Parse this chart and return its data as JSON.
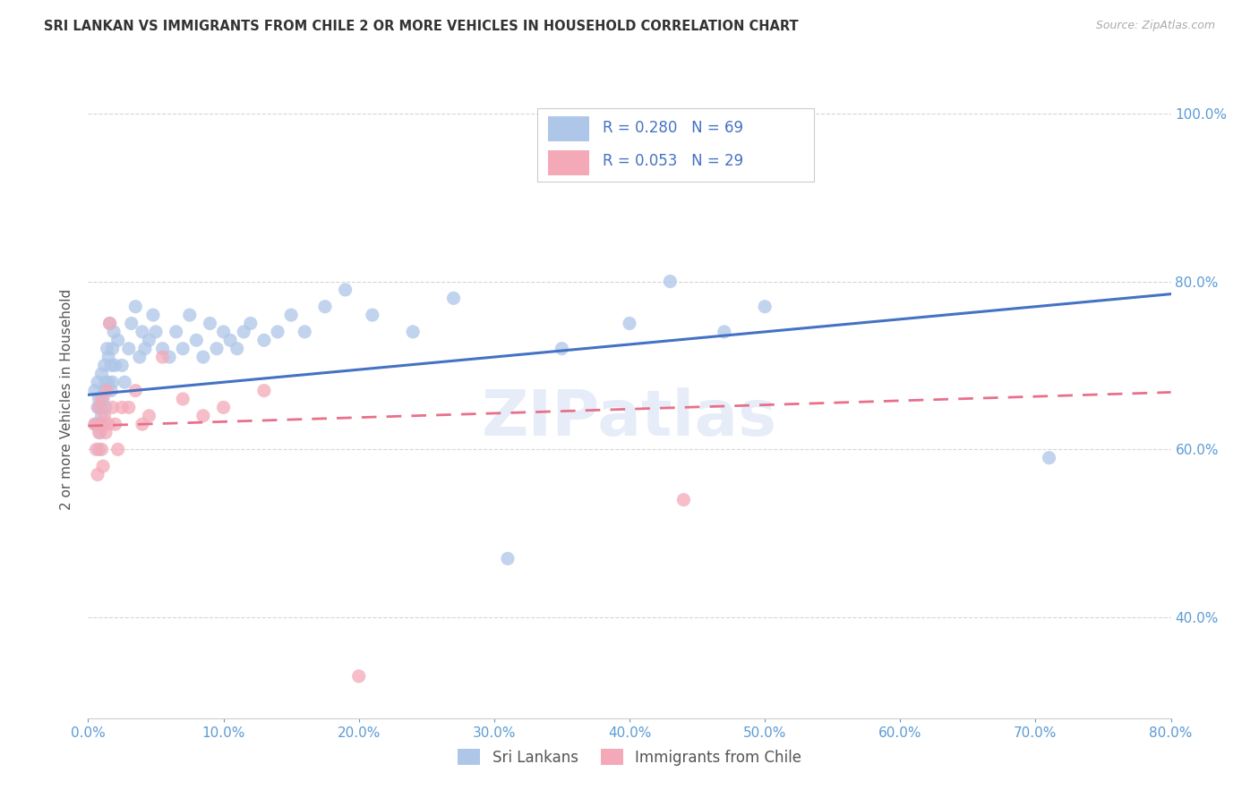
{
  "title": "SRI LANKAN VS IMMIGRANTS FROM CHILE 2 OR MORE VEHICLES IN HOUSEHOLD CORRELATION CHART",
  "source": "Source: ZipAtlas.com",
  "xlabel_ticks": [
    "0.0%",
    "10.0%",
    "20.0%",
    "30.0%",
    "40.0%",
    "50.0%",
    "60.0%",
    "70.0%",
    "80.0%"
  ],
  "ylabel_ticks": [
    "40.0%",
    "60.0%",
    "80.0%",
    "100.0%"
  ],
  "xmin": 0.0,
  "xmax": 0.8,
  "ymin": 0.28,
  "ymax": 1.04,
  "sri_lankan_R": 0.28,
  "sri_lankan_N": 69,
  "chile_R": 0.053,
  "chile_N": 29,
  "sri_lankan_color": "#aec6e8",
  "chile_color": "#f4a9b8",
  "sri_lankan_line_color": "#4472c4",
  "chile_line_color": "#e8708a",
  "legend_label_1": "Sri Lankans",
  "legend_label_2": "Immigrants from Chile",
  "watermark_text": "ZIPatlas",
  "sri_lankan_x": [
    0.005,
    0.005,
    0.007,
    0.007,
    0.007,
    0.008,
    0.008,
    0.009,
    0.009,
    0.01,
    0.01,
    0.011,
    0.011,
    0.012,
    0.012,
    0.013,
    0.013,
    0.014,
    0.015,
    0.015,
    0.016,
    0.017,
    0.017,
    0.018,
    0.018,
    0.019,
    0.02,
    0.022,
    0.025,
    0.027,
    0.03,
    0.032,
    0.035,
    0.038,
    0.04,
    0.042,
    0.045,
    0.048,
    0.05,
    0.055,
    0.06,
    0.065,
    0.07,
    0.075,
    0.08,
    0.085,
    0.09,
    0.095,
    0.1,
    0.105,
    0.11,
    0.115,
    0.12,
    0.13,
    0.14,
    0.15,
    0.16,
    0.175,
    0.19,
    0.21,
    0.24,
    0.27,
    0.31,
    0.35,
    0.4,
    0.43,
    0.47,
    0.5,
    0.71
  ],
  "sri_lankan_y": [
    0.63,
    0.67,
    0.65,
    0.68,
    0.63,
    0.6,
    0.66,
    0.62,
    0.65,
    0.64,
    0.69,
    0.66,
    0.63,
    0.7,
    0.67,
    0.68,
    0.65,
    0.72,
    0.68,
    0.71,
    0.75,
    0.7,
    0.67,
    0.72,
    0.68,
    0.74,
    0.7,
    0.73,
    0.7,
    0.68,
    0.72,
    0.75,
    0.77,
    0.71,
    0.74,
    0.72,
    0.73,
    0.76,
    0.74,
    0.72,
    0.71,
    0.74,
    0.72,
    0.76,
    0.73,
    0.71,
    0.75,
    0.72,
    0.74,
    0.73,
    0.72,
    0.74,
    0.75,
    0.73,
    0.74,
    0.76,
    0.74,
    0.77,
    0.79,
    0.76,
    0.74,
    0.78,
    0.47,
    0.72,
    0.75,
    0.8,
    0.74,
    0.77,
    0.59
  ],
  "chile_x": [
    0.005,
    0.006,
    0.007,
    0.008,
    0.008,
    0.009,
    0.01,
    0.01,
    0.011,
    0.012,
    0.013,
    0.014,
    0.015,
    0.016,
    0.018,
    0.02,
    0.022,
    0.025,
    0.03,
    0.035,
    0.04,
    0.045,
    0.055,
    0.07,
    0.085,
    0.1,
    0.13,
    0.2,
    0.44
  ],
  "chile_y": [
    0.63,
    0.6,
    0.57,
    0.62,
    0.65,
    0.63,
    0.6,
    0.66,
    0.58,
    0.64,
    0.62,
    0.67,
    0.63,
    0.75,
    0.65,
    0.63,
    0.6,
    0.65,
    0.65,
    0.67,
    0.63,
    0.64,
    0.71,
    0.66,
    0.64,
    0.65,
    0.67,
    0.33,
    0.54
  ],
  "sl_line_x0": 0.0,
  "sl_line_y0": 0.665,
  "sl_line_x1": 0.8,
  "sl_line_y1": 0.785,
  "ch_line_x0": 0.0,
  "ch_line_y0": 0.628,
  "ch_line_x1": 0.8,
  "ch_line_y1": 0.668
}
